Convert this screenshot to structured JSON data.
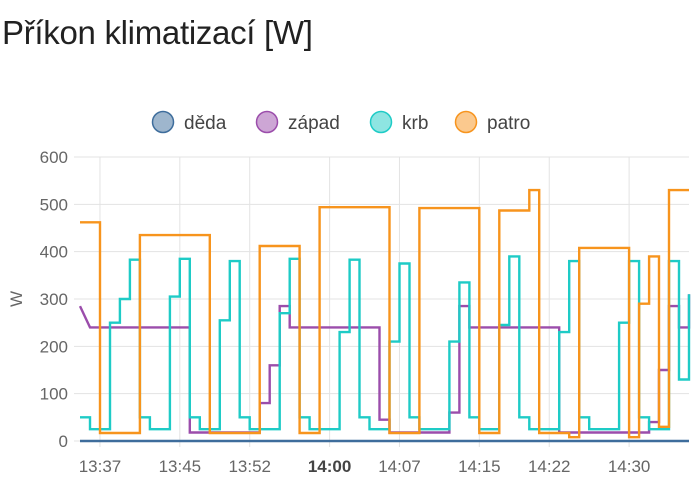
{
  "card": {
    "title": "Příkon klimatizací [W]"
  },
  "chart_data": {
    "type": "line",
    "step": true,
    "title": "Příkon klimatizací [W]",
    "xlabel": "",
    "ylabel": "W",
    "ylim": [
      0,
      600
    ],
    "xlim": [
      "13:35",
      "14:36"
    ],
    "yticks": [
      0,
      100,
      200,
      300,
      400,
      500,
      600
    ],
    "xticks": [
      {
        "value": "13:37",
        "label": "13:37",
        "bold": false
      },
      {
        "value": "13:45",
        "label": "13:45",
        "bold": false
      },
      {
        "value": "13:52",
        "label": "13:52",
        "bold": false
      },
      {
        "value": "14:00",
        "label": "14:00",
        "bold": true
      },
      {
        "value": "14:07",
        "label": "14:07",
        "bold": false
      },
      {
        "value": "14:15",
        "label": "14:15",
        "bold": false
      },
      {
        "value": "14:22",
        "label": "14:22",
        "bold": false
      },
      {
        "value": "14:30",
        "label": "14:30",
        "bold": false
      }
    ],
    "grid": true,
    "legend_position": "top",
    "series": [
      {
        "name": "děda",
        "color": "#3e6d9c",
        "points": [
          [
            "13:35",
            0
          ],
          [
            "14:36",
            0
          ]
        ]
      },
      {
        "name": "západ",
        "color": "#9b4dab",
        "points": [
          [
            "13:35",
            285
          ],
          [
            "13:36",
            240
          ],
          [
            "13:46",
            240
          ],
          [
            "13:46",
            18
          ],
          [
            "13:53",
            18
          ],
          [
            "13:53",
            80
          ],
          [
            "13:54",
            80
          ],
          [
            "13:54",
            160
          ],
          [
            "13:55",
            160
          ],
          [
            "13:55",
            285
          ],
          [
            "13:56",
            285
          ],
          [
            "13:56",
            240
          ],
          [
            "14:05",
            240
          ],
          [
            "14:05",
            45
          ],
          [
            "14:06",
            45
          ],
          [
            "14:06",
            18
          ],
          [
            "14:12",
            18
          ],
          [
            "14:12",
            60
          ],
          [
            "14:13",
            60
          ],
          [
            "14:13",
            140
          ],
          [
            "14:13",
            285
          ],
          [
            "14:14",
            285
          ],
          [
            "14:14",
            240
          ],
          [
            "14:23",
            240
          ],
          [
            "14:23",
            18
          ],
          [
            "14:32",
            18
          ],
          [
            "14:32",
            40
          ],
          [
            "14:33",
            40
          ],
          [
            "14:33",
            150
          ],
          [
            "14:34",
            150
          ],
          [
            "14:34",
            285
          ],
          [
            "14:35",
            285
          ],
          [
            "14:35",
            240
          ],
          [
            "14:36",
            240
          ],
          [
            "14:36",
            310
          ]
        ]
      },
      {
        "name": "krb",
        "color": "#1ecbc6",
        "points": [
          [
            "13:35",
            50
          ],
          [
            "13:36",
            50
          ],
          [
            "13:36",
            25
          ],
          [
            "13:38",
            25
          ],
          [
            "13:38",
            150
          ],
          [
            "13:38",
            250
          ],
          [
            "13:39",
            250
          ],
          [
            "13:39",
            300
          ],
          [
            "13:40",
            300
          ],
          [
            "13:40",
            383
          ],
          [
            "13:41",
            383
          ],
          [
            "13:41",
            50
          ],
          [
            "13:42",
            50
          ],
          [
            "13:42",
            25
          ],
          [
            "13:44",
            25
          ],
          [
            "13:44",
            220
          ],
          [
            "13:44",
            305
          ],
          [
            "13:45",
            305
          ],
          [
            "13:45",
            385
          ],
          [
            "13:46",
            385
          ],
          [
            "13:46",
            50
          ],
          [
            "13:47",
            50
          ],
          [
            "13:47",
            25
          ],
          [
            "13:49",
            25
          ],
          [
            "13:49",
            255
          ],
          [
            "13:50",
            255
          ],
          [
            "13:50",
            380
          ],
          [
            "13:51",
            380
          ],
          [
            "13:51",
            50
          ],
          [
            "13:52",
            50
          ],
          [
            "13:52",
            25
          ],
          [
            "13:55",
            25
          ],
          [
            "13:55",
            270
          ],
          [
            "13:56",
            270
          ],
          [
            "13:56",
            385
          ],
          [
            "13:57",
            385
          ],
          [
            "13:57",
            50
          ],
          [
            "13:58",
            50
          ],
          [
            "13:58",
            25
          ],
          [
            "14:01",
            25
          ],
          [
            "14:01",
            230
          ],
          [
            "14:02",
            230
          ],
          [
            "14:02",
            383
          ],
          [
            "14:03",
            383
          ],
          [
            "14:03",
            50
          ],
          [
            "14:04",
            50
          ],
          [
            "14:04",
            25
          ],
          [
            "14:06",
            25
          ],
          [
            "14:06",
            210
          ],
          [
            "14:07",
            210
          ],
          [
            "14:07",
            375
          ],
          [
            "14:08",
            375
          ],
          [
            "14:08",
            50
          ],
          [
            "14:09",
            50
          ],
          [
            "14:09",
            25
          ],
          [
            "14:12",
            25
          ],
          [
            "14:12",
            210
          ],
          [
            "14:13",
            210
          ],
          [
            "14:13",
            335
          ],
          [
            "14:14",
            335
          ],
          [
            "14:14",
            50
          ],
          [
            "14:15",
            50
          ],
          [
            "14:15",
            25
          ],
          [
            "14:17",
            25
          ],
          [
            "14:17",
            245
          ],
          [
            "14:18",
            245
          ],
          [
            "14:18",
            390
          ],
          [
            "14:19",
            390
          ],
          [
            "14:19",
            50
          ],
          [
            "14:20",
            50
          ],
          [
            "14:20",
            25
          ],
          [
            "14:23",
            25
          ],
          [
            "14:23",
            230
          ],
          [
            "14:24",
            230
          ],
          [
            "14:24",
            380
          ],
          [
            "14:25",
            380
          ],
          [
            "14:25",
            50
          ],
          [
            "14:26",
            50
          ],
          [
            "14:26",
            25
          ],
          [
            "14:29",
            25
          ],
          [
            "14:29",
            250
          ],
          [
            "14:30",
            250
          ],
          [
            "14:30",
            380
          ],
          [
            "14:31",
            380
          ],
          [
            "14:31",
            50
          ],
          [
            "14:32",
            50
          ],
          [
            "14:32",
            25
          ],
          [
            "14:34",
            25
          ],
          [
            "14:34",
            380
          ],
          [
            "14:35",
            380
          ],
          [
            "14:35",
            130
          ],
          [
            "14:36",
            130
          ],
          [
            "14:36",
            310
          ]
        ]
      },
      {
        "name": "patro",
        "color": "#f7941d",
        "points": [
          [
            "13:35",
            462
          ],
          [
            "13:37",
            462
          ],
          [
            "13:37",
            17
          ],
          [
            "13:41",
            17
          ],
          [
            "13:41",
            435
          ],
          [
            "13:48",
            435
          ],
          [
            "13:48",
            17
          ],
          [
            "13:53",
            17
          ],
          [
            "13:53",
            412
          ],
          [
            "13:57",
            412
          ],
          [
            "13:57",
            17
          ],
          [
            "13:59",
            17
          ],
          [
            "13:59",
            494
          ],
          [
            "14:06",
            494
          ],
          [
            "14:06",
            17
          ],
          [
            "14:09",
            17
          ],
          [
            "14:09",
            492
          ],
          [
            "14:15",
            492
          ],
          [
            "14:15",
            17
          ],
          [
            "14:17",
            17
          ],
          [
            "14:17",
            487
          ],
          [
            "14:20",
            487
          ],
          [
            "14:20",
            530
          ],
          [
            "14:21",
            530
          ],
          [
            "14:21",
            17
          ],
          [
            "14:24",
            17
          ],
          [
            "14:24",
            8
          ],
          [
            "14:25",
            8
          ],
          [
            "14:25",
            408
          ],
          [
            "14:30",
            408
          ],
          [
            "14:30",
            8
          ],
          [
            "14:31",
            8
          ],
          [
            "14:31",
            290
          ],
          [
            "14:32",
            290
          ],
          [
            "14:32",
            390
          ],
          [
            "14:33",
            390
          ],
          [
            "14:33",
            30
          ],
          [
            "14:34",
            30
          ],
          [
            "14:34",
            380
          ],
          [
            "14:34",
            530
          ],
          [
            "14:36",
            530
          ]
        ]
      }
    ]
  }
}
